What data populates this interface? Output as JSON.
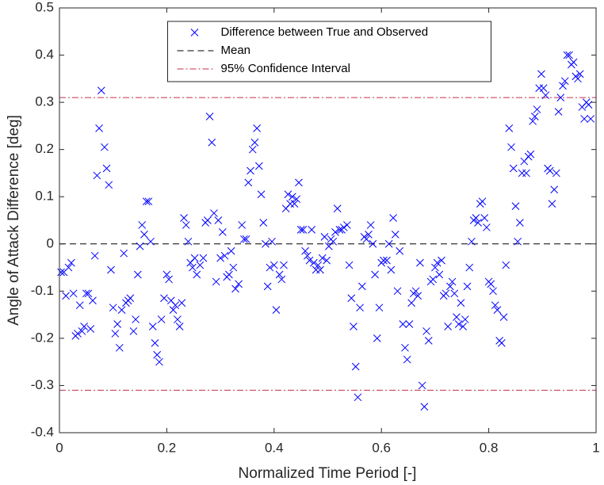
{
  "chart_data": {
    "type": "scatter",
    "x_label": "Normalized Time Period [-]",
    "y_label": "Angle of Attack Difference [deg]",
    "xlim": [
      0,
      1
    ],
    "ylim": [
      -0.4,
      0.5
    ],
    "xticks": [
      0,
      0.2,
      0.4,
      0.6,
      0.8,
      1
    ],
    "yticks": [
      -0.4,
      -0.3,
      -0.2,
      -0.1,
      0,
      0.1,
      0.2,
      0.3,
      0.4,
      0.5
    ],
    "grid": false,
    "legend_location": "north",
    "series": [
      {
        "name": "Difference between True and Observed",
        "color": "#0000ff",
        "marker": "x",
        "x": [
          0.003,
          0.008,
          0.012,
          0.017,
          0.022,
          0.026,
          0.03,
          0.034,
          0.038,
          0.042,
          0.046,
          0.05,
          0.054,
          0.058,
          0.062,
          0.066,
          0.07,
          0.074,
          0.078,
          0.084,
          0.088,
          0.092,
          0.096,
          0.1,
          0.104,
          0.108,
          0.112,
          0.116,
          0.12,
          0.124,
          0.128,
          0.132,
          0.138,
          0.142,
          0.146,
          0.15,
          0.154,
          0.158,
          0.162,
          0.166,
          0.17,
          0.174,
          0.178,
          0.182,
          0.186,
          0.19,
          0.195,
          0.2,
          0.204,
          0.208,
          0.212,
          0.216,
          0.22,
          0.224,
          0.228,
          0.232,
          0.236,
          0.24,
          0.244,
          0.248,
          0.252,
          0.256,
          0.262,
          0.268,
          0.272,
          0.276,
          0.28,
          0.284,
          0.288,
          0.292,
          0.296,
          0.3,
          0.304,
          0.308,
          0.312,
          0.316,
          0.32,
          0.324,
          0.328,
          0.334,
          0.34,
          0.344,
          0.348,
          0.352,
          0.356,
          0.36,
          0.364,
          0.368,
          0.372,
          0.376,
          0.38,
          0.384,
          0.388,
          0.392,
          0.396,
          0.4,
          0.404,
          0.41,
          0.414,
          0.418,
          0.422,
          0.426,
          0.43,
          0.434,
          0.438,
          0.442,
          0.446,
          0.45,
          0.454,
          0.458,
          0.462,
          0.466,
          0.47,
          0.474,
          0.478,
          0.482,
          0.486,
          0.49,
          0.494,
          0.498,
          0.502,
          0.506,
          0.51,
          0.514,
          0.518,
          0.522,
          0.526,
          0.53,
          0.536,
          0.54,
          0.544,
          0.548,
          0.552,
          0.556,
          0.56,
          0.564,
          0.568,
          0.572,
          0.576,
          0.58,
          0.584,
          0.588,
          0.592,
          0.596,
          0.6,
          0.604,
          0.61,
          0.614,
          0.618,
          0.622,
          0.626,
          0.63,
          0.634,
          0.64,
          0.644,
          0.648,
          0.652,
          0.656,
          0.66,
          0.664,
          0.668,
          0.672,
          0.676,
          0.68,
          0.684,
          0.688,
          0.692,
          0.696,
          0.7,
          0.704,
          0.708,
          0.712,
          0.716,
          0.72,
          0.724,
          0.728,
          0.732,
          0.736,
          0.74,
          0.744,
          0.748,
          0.752,
          0.756,
          0.76,
          0.764,
          0.768,
          0.772,
          0.776,
          0.78,
          0.784,
          0.788,
          0.792,
          0.796,
          0.8,
          0.804,
          0.808,
          0.812,
          0.816,
          0.82,
          0.824,
          0.828,
          0.832,
          0.838,
          0.842,
          0.846,
          0.85,
          0.854,
          0.858,
          0.862,
          0.866,
          0.87,
          0.874,
          0.878,
          0.882,
          0.886,
          0.89,
          0.894,
          0.898,
          0.902,
          0.906,
          0.91,
          0.914,
          0.918,
          0.922,
          0.926,
          0.93,
          0.934,
          0.938,
          0.942,
          0.946,
          0.95,
          0.954,
          0.958,
          0.962,
          0.966,
          0.97,
          0.974,
          0.978,
          0.982,
          0.986,
          0.99
        ],
        "values": [
          -0.06,
          -0.06,
          -0.11,
          -0.05,
          -0.04,
          -0.105,
          -0.195,
          -0.19,
          -0.13,
          -0.185,
          -0.175,
          -0.105,
          -0.105,
          -0.18,
          -0.12,
          -0.025,
          0.145,
          0.245,
          0.325,
          0.205,
          0.16,
          0.125,
          -0.055,
          -0.135,
          -0.19,
          -0.17,
          -0.22,
          -0.14,
          -0.02,
          -0.125,
          -0.12,
          -0.115,
          -0.185,
          -0.16,
          -0.065,
          -0.005,
          0.04,
          0.02,
          0.09,
          0.09,
          0.005,
          -0.175,
          -0.21,
          -0.235,
          -0.25,
          -0.16,
          -0.115,
          -0.065,
          -0.075,
          -0.12,
          -0.14,
          -0.13,
          -0.16,
          -0.175,
          -0.125,
          0.055,
          0.04,
          0.005,
          -0.04,
          -0.05,
          -0.03,
          -0.065,
          -0.045,
          -0.03,
          0.045,
          0.05,
          0.27,
          0.215,
          0.065,
          -0.08,
          0.05,
          -0.03,
          0.025,
          -0.025,
          -0.07,
          -0.065,
          -0.015,
          -0.05,
          -0.095,
          -0.085,
          0.04,
          0.01,
          0.01,
          0.13,
          0.155,
          0.2,
          0.215,
          0.245,
          0.165,
          0.105,
          0.045,
          0.0,
          -0.09,
          -0.05,
          0.005,
          -0.045,
          -0.14,
          -0.065,
          -0.075,
          -0.045,
          0.075,
          0.105,
          0.085,
          0.1,
          0.085,
          0.095,
          0.13,
          0.03,
          0.03,
          -0.015,
          -0.025,
          -0.035,
          0.03,
          -0.04,
          -0.055,
          -0.045,
          -0.055,
          -0.03,
          0.015,
          -0.035,
          -0.005,
          0.01,
          0.005,
          0.025,
          0.075,
          0.03,
          0.03,
          0.035,
          0.04,
          -0.045,
          -0.115,
          -0.175,
          -0.26,
          -0.325,
          -0.135,
          -0.09,
          0.015,
          0.01,
          0.02,
          0.04,
          0.0,
          -0.065,
          -0.2,
          -0.135,
          -0.04,
          -0.035,
          -0.035,
          0.0,
          -0.055,
          0.055,
          0.02,
          -0.1,
          -0.015,
          -0.17,
          -0.22,
          -0.245,
          -0.17,
          -0.125,
          -0.105,
          -0.1,
          -0.11,
          -0.04,
          -0.3,
          -0.345,
          -0.185,
          -0.205,
          -0.08,
          -0.075,
          -0.05,
          -0.04,
          -0.065,
          -0.035,
          -0.11,
          -0.105,
          -0.175,
          -0.09,
          -0.08,
          -0.105,
          -0.155,
          -0.17,
          -0.125,
          -0.175,
          -0.16,
          -0.09,
          -0.05,
          0.005,
          0.05,
          0.055,
          0.045,
          0.085,
          0.09,
          0.055,
          0.035,
          -0.08,
          -0.085,
          -0.1,
          -0.13,
          -0.14,
          -0.205,
          -0.21,
          -0.155,
          -0.045,
          0.245,
          0.205,
          0.16,
          0.08,
          0.005,
          0.045,
          0.15,
          0.175,
          0.15,
          0.185,
          0.19,
          0.26,
          0.27,
          0.285,
          0.33,
          0.36,
          0.33,
          0.315,
          0.16,
          0.155,
          0.085,
          0.115,
          0.15,
          0.28,
          0.31,
          0.335,
          0.345,
          0.4,
          0.4,
          0.38,
          0.385,
          0.355,
          0.35,
          0.36,
          0.29,
          0.265,
          0.3,
          0.295,
          0.265
        ]
      }
    ],
    "reference_lines": [
      {
        "name": "Mean",
        "values": [
          0
        ],
        "color": "#000000",
        "style": "dashed"
      },
      {
        "name": "95% Confidence Interval",
        "values": [
          0.31,
          -0.31
        ],
        "color": "#c0304a",
        "style": "dashdot"
      }
    ]
  }
}
